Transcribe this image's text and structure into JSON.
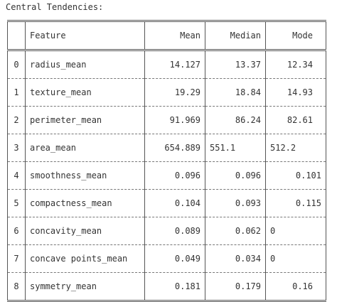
{
  "title": "Central Tendencies:",
  "table": {
    "headers": [
      "",
      "Feature",
      "Mean",
      "Median",
      "Mode"
    ],
    "rows": [
      {
        "idx": "0",
        "feature": "radius_mean",
        "mean": "14.127",
        "median": "13.37",
        "mode": "12.34"
      },
      {
        "idx": "1",
        "feature": "texture_mean",
        "mean": "19.29",
        "median": "18.84",
        "mode": "14.93"
      },
      {
        "idx": "2",
        "feature": "perimeter_mean",
        "mean": "91.969",
        "median": "86.24",
        "mode": "82.61"
      },
      {
        "idx": "3",
        "feature": "area_mean",
        "mean": "654.889",
        "median": "551.1",
        "mode": "512.2"
      },
      {
        "idx": "4",
        "feature": "smoothness_mean",
        "mean": "0.096",
        "median": "0.096",
        "mode": "0.101"
      },
      {
        "idx": "5",
        "feature": "compactness_mean",
        "mean": "0.104",
        "median": "0.093",
        "mode": "0.115"
      },
      {
        "idx": "6",
        "feature": "concavity_mean",
        "mean": "0.089",
        "median": "0.062",
        "mode": "0"
      },
      {
        "idx": "7",
        "feature": "concave points_mean",
        "mean": "0.049",
        "median": "0.034",
        "mode": "0"
      },
      {
        "idx": "8",
        "feature": "symmetry_mean",
        "mean": "0.181",
        "median": "0.179",
        "mode": "0.16"
      }
    ]
  }
}
